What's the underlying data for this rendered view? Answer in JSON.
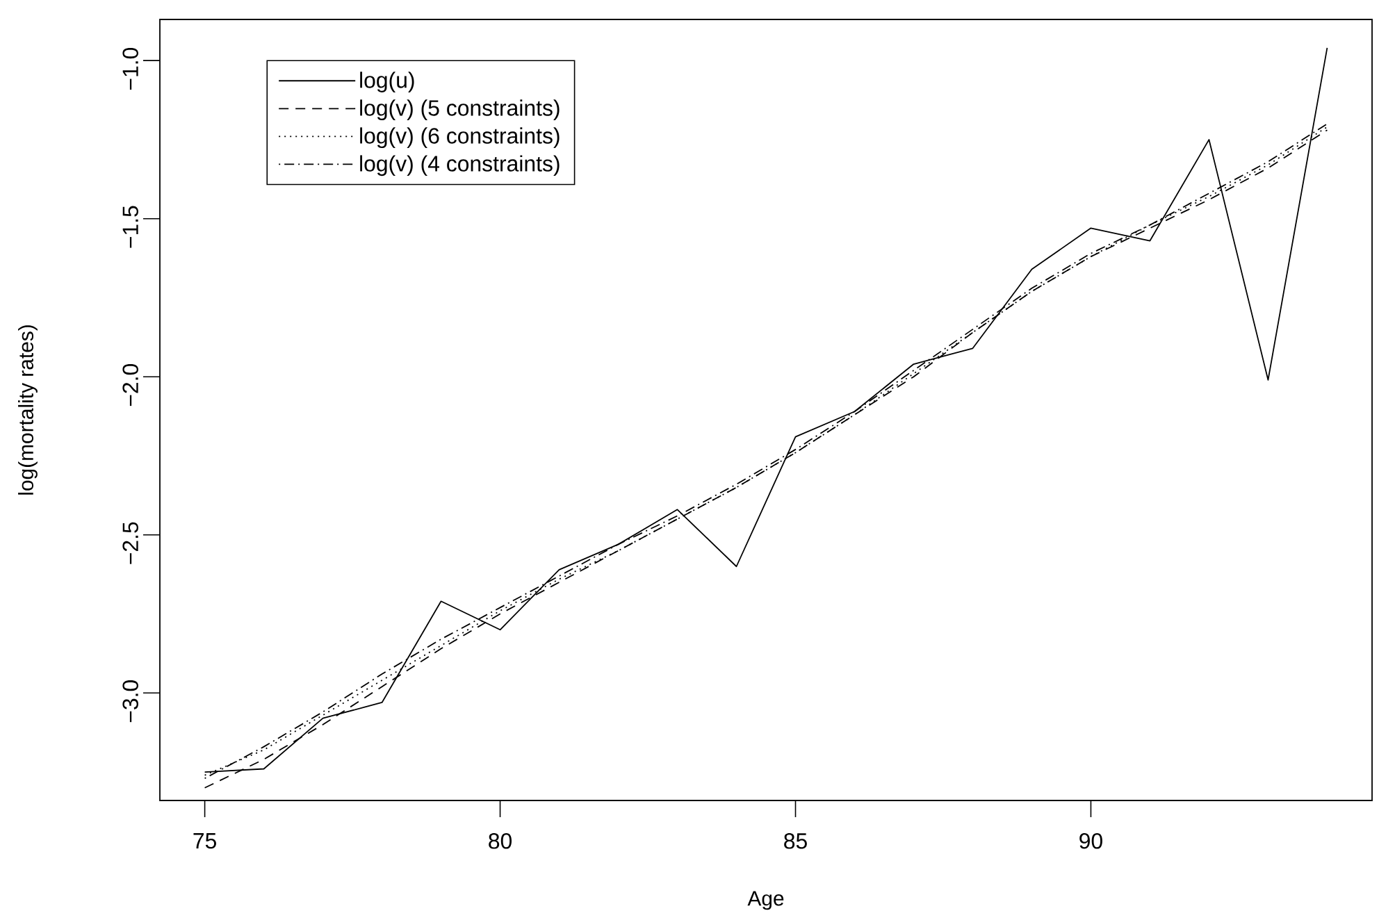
{
  "chart_data": {
    "type": "line",
    "xlabel": "Age",
    "ylabel": "log(mortality rates)",
    "x": [
      75,
      76,
      77,
      78,
      79,
      80,
      81,
      82,
      83,
      84,
      85,
      86,
      87,
      88,
      89,
      90,
      91,
      92,
      93,
      94
    ],
    "series": [
      {
        "name": "log(u)",
        "color": "#000000",
        "line_style": "solid",
        "values": [
          -3.25,
          -3.24,
          -3.08,
          -3.03,
          -2.71,
          -2.8,
          -2.61,
          -2.53,
          -2.42,
          -2.6,
          -2.19,
          -2.11,
          -1.96,
          -1.91,
          -1.66,
          -1.53,
          -1.57,
          -1.25,
          -2.01,
          -0.96
        ]
      },
      {
        "name": "log(v) (5 constraints)",
        "color": "#000000",
        "line_style": "dashed",
        "values": [
          -3.3,
          -3.21,
          -3.1,
          -2.98,
          -2.86,
          -2.75,
          -2.65,
          -2.55,
          -2.45,
          -2.35,
          -2.24,
          -2.12,
          -2.0,
          -1.86,
          -1.73,
          -1.62,
          -1.53,
          -1.44,
          -1.34,
          -1.22
        ]
      },
      {
        "name": "log(v) (6 constraints)",
        "color": "#000000",
        "line_style": "dotted",
        "values": [
          -3.26,
          -3.18,
          -3.07,
          -2.96,
          -2.85,
          -2.74,
          -2.64,
          -2.55,
          -2.45,
          -2.35,
          -2.24,
          -2.12,
          -1.99,
          -1.86,
          -1.73,
          -1.62,
          -1.52,
          -1.43,
          -1.33,
          -1.21
        ]
      },
      {
        "name": "log(v) (4 constraints)",
        "color": "#000000",
        "line_style": "dashdot",
        "values": [
          -3.27,
          -3.17,
          -3.06,
          -2.94,
          -2.83,
          -2.73,
          -2.63,
          -2.53,
          -2.44,
          -2.34,
          -2.23,
          -2.11,
          -1.98,
          -1.85,
          -1.72,
          -1.61,
          -1.52,
          -1.42,
          -1.32,
          -1.2
        ]
      }
    ],
    "xlim": [
      74.24,
      94.76
    ],
    "ylim": [
      -3.34,
      -0.87
    ],
    "xticks": [
      75,
      80,
      85,
      90
    ],
    "yticks": [
      {
        "value": -3.0,
        "label": "−3.0"
      },
      {
        "value": -2.5,
        "label": "−2.5"
      },
      {
        "value": -2.0,
        "label": "−2.0"
      },
      {
        "value": -1.5,
        "label": "−1.5"
      },
      {
        "value": -1.0,
        "label": "−1.0"
      }
    ],
    "grid": false,
    "legend": "top left",
    "marker": "none"
  }
}
